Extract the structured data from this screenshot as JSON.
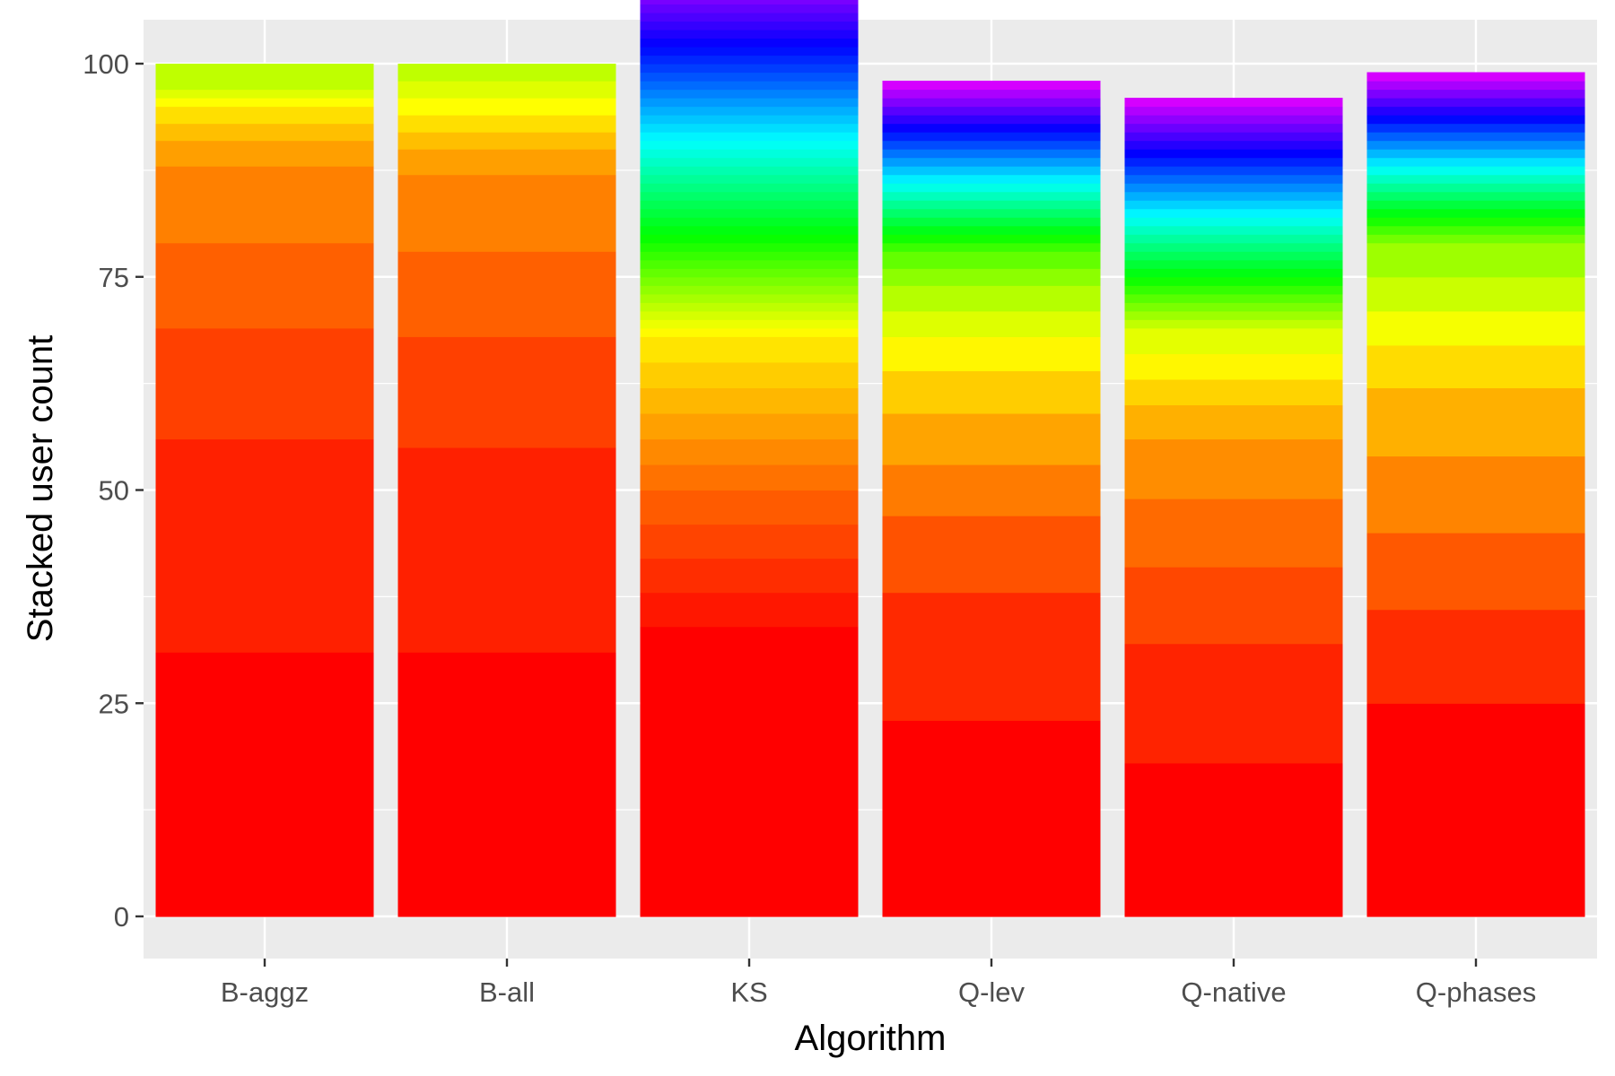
{
  "chart_data": {
    "type": "bar",
    "stacked": true,
    "xlabel": "Algorithm",
    "ylabel": "Stacked user count",
    "ylim": [
      0,
      105
    ],
    "yticks": [
      0,
      25,
      50,
      75,
      100
    ],
    "categories": [
      "B-aggz",
      "B-all",
      "KS",
      "Q-lev",
      "Q-native",
      "Q-phases"
    ],
    "palette": "rainbow, red at the bottom segment through orange, yellow, green and blue to violet at the top",
    "stacks": [
      {
        "category": "B-aggz",
        "segments": [
          31,
          25,
          13,
          10,
          9,
          3,
          2,
          2,
          1,
          1,
          3
        ]
      },
      {
        "category": "B-all",
        "segments": [
          31,
          24,
          13,
          10,
          9,
          3,
          2,
          2,
          2,
          2,
          2
        ]
      },
      {
        "category": "KS",
        "segments": [
          34,
          4,
          4,
          4,
          4,
          3,
          3,
          3,
          3,
          3,
          3,
          1,
          1,
          1,
          1,
          1,
          1,
          1,
          1,
          1,
          1,
          1,
          1,
          1,
          1,
          1,
          1,
          1,
          1,
          1,
          1,
          1,
          1,
          1,
          1,
          1,
          1,
          1,
          1,
          1,
          1,
          1,
          1,
          1,
          1,
          1,
          1,
          1,
          1,
          1,
          1,
          1,
          1,
          1,
          1
        ]
      },
      {
        "category": "Q-lev",
        "segments": [
          23,
          15,
          9,
          6,
          6,
          5,
          4,
          3,
          3,
          2,
          2,
          1,
          1,
          1,
          1,
          1,
          1,
          1,
          1,
          1,
          1,
          1,
          1,
          1,
          1,
          1,
          1,
          1,
          1,
          1,
          1
        ]
      },
      {
        "category": "Q-native",
        "segments": [
          18,
          14,
          9,
          8,
          7,
          4,
          3,
          3,
          3,
          1,
          1,
          1,
          1,
          1,
          1,
          1,
          1,
          1,
          1,
          1,
          1,
          1,
          1,
          1,
          1,
          1,
          1,
          1,
          1,
          1,
          1,
          1,
          1,
          1,
          1,
          1
        ]
      },
      {
        "category": "Q-phases",
        "segments": [
          25,
          11,
          9,
          9,
          8,
          5,
          4,
          4,
          4,
          1,
          1,
          1,
          1,
          1,
          1,
          1,
          1,
          1,
          1,
          1,
          1,
          1,
          1,
          1,
          1,
          1,
          1,
          1,
          1
        ]
      }
    ]
  }
}
